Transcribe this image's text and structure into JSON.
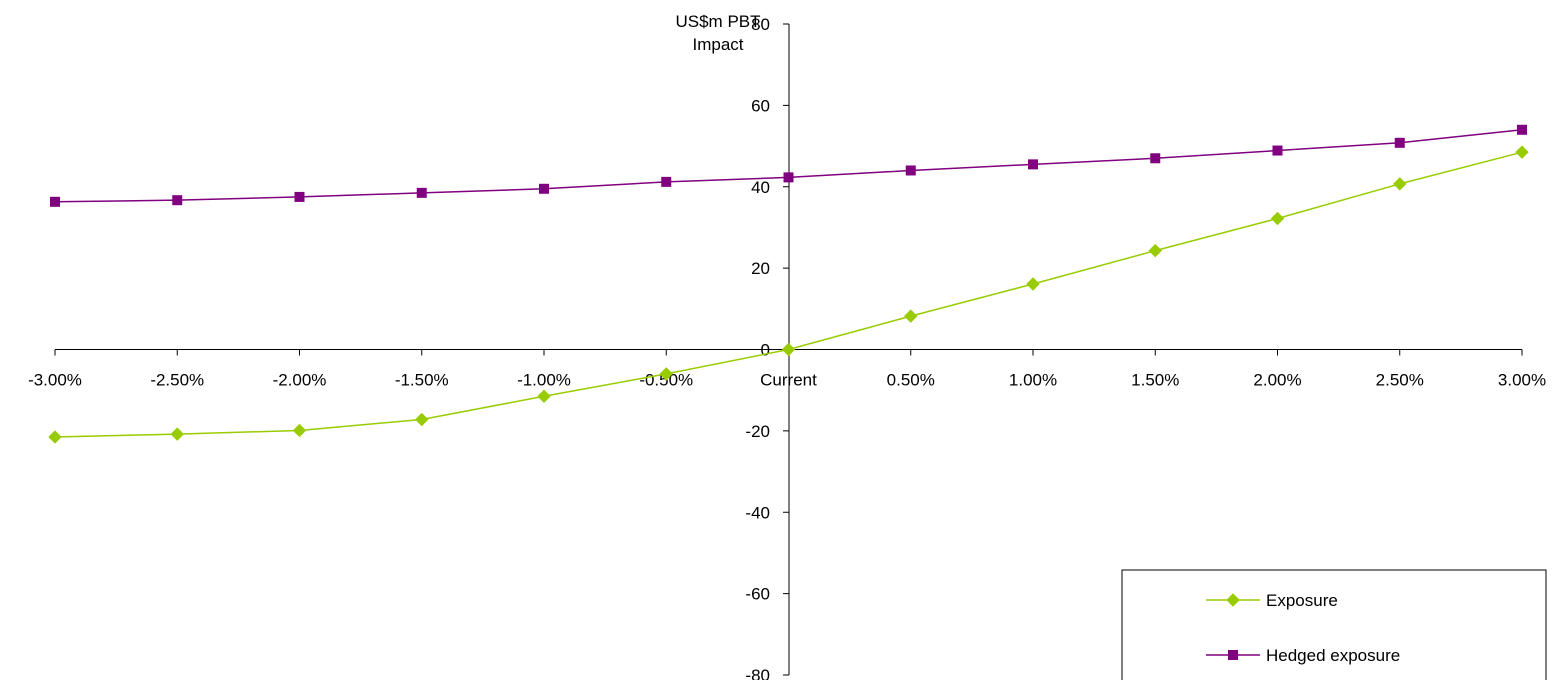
{
  "chart_data": {
    "type": "line",
    "title": "",
    "ylabel": [
      "US$m PBT",
      "Impact"
    ],
    "xlabel": "",
    "categories": [
      "-3.00%",
      "-2.50%",
      "-2.00%",
      "-1.50%",
      "-1.00%",
      "-0.50%",
      "Current",
      "0.50%",
      "1.00%",
      "1.50%",
      "2.00%",
      "2.50%",
      "3.00%"
    ],
    "ylim": [
      -80,
      80
    ],
    "yticks": [
      80,
      60,
      40,
      20,
      0,
      -20,
      -40,
      -60,
      -80
    ],
    "grid": false,
    "legend_position": "bottom-right",
    "series": [
      {
        "name": "Exposure",
        "color": "#99CC00",
        "marker": "diamond",
        "values": [
          -21.5,
          -20.8,
          -19.9,
          -17.2,
          -11.5,
          -6.0,
          0.0,
          8.2,
          16.1,
          24.3,
          32.2,
          40.7,
          48.5
        ]
      },
      {
        "name": "Hedged exposure",
        "color": "#800080",
        "marker": "square",
        "values": [
          36.3,
          36.7,
          37.5,
          38.5,
          39.5,
          41.2,
          42.3,
          44.0,
          45.5,
          47.0,
          48.9,
          50.8,
          54.0
        ]
      }
    ]
  }
}
